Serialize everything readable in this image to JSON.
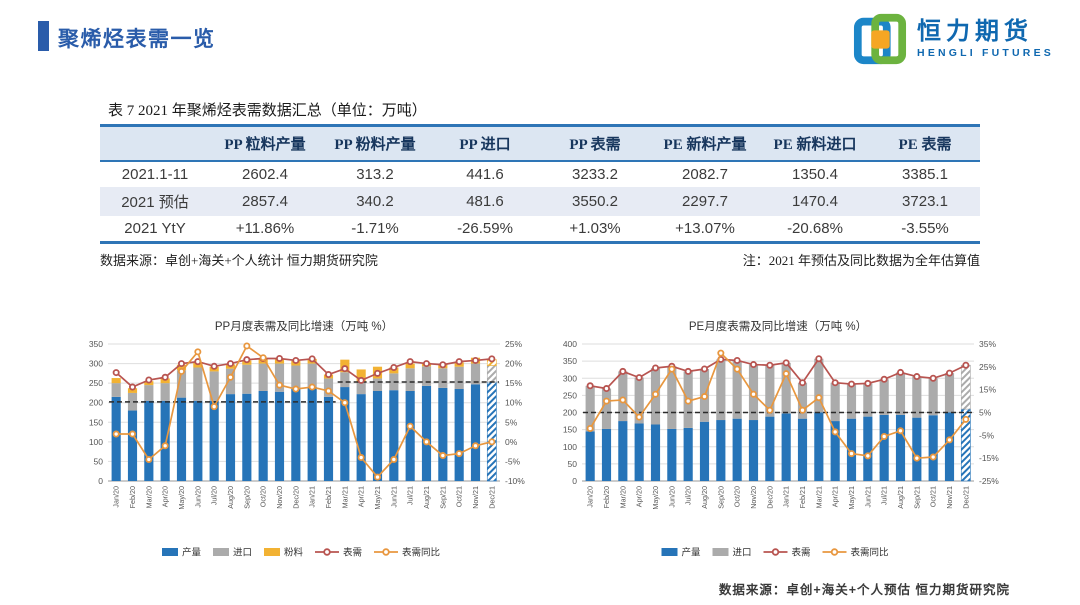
{
  "header": {
    "title": "聚烯烃表需一览",
    "logo": {
      "cn": "恒力期货",
      "en": "HENGLI FUTURES"
    }
  },
  "table": {
    "caption": "表 7 2021 年聚烯烃表需数据汇总（单位：万吨）",
    "columns": [
      "",
      "PP 粒料产量",
      "PP 粉料产量",
      "PP 进口",
      "PP 表需",
      "PE 新料产量",
      "PE 新料进口",
      "PE 表需"
    ],
    "rows": [
      {
        "label": "2021.1-11",
        "values": [
          "2602.4",
          "313.2",
          "441.6",
          "3233.2",
          "2082.7",
          "1350.4",
          "3385.1"
        ]
      },
      {
        "label": "2021 预估",
        "values": [
          "2857.4",
          "340.2",
          "481.6",
          "3550.2",
          "2297.7",
          "1470.4",
          "3723.1"
        ]
      },
      {
        "label": "2021 YtY",
        "values": [
          "+11.86%",
          "-1.71%",
          "-26.59%",
          "+1.03%",
          "+13.07%",
          "-20.68%",
          "-3.55%"
        ]
      }
    ],
    "source_note": "数据来源：卓创+海关+个人统计  恒力期货研究院",
    "estimate_note": "注：2021 年预估及同比数据为全年估算值"
  },
  "chart_data": [
    {
      "id": "pp",
      "type": "bar",
      "title": "PP月度表需及同比增速（万吨 %）",
      "categories": [
        "Jan/20",
        "Feb/20",
        "Mar/20",
        "Apr/20",
        "May/20",
        "Jun/20",
        "Jul/20",
        "Aug/20",
        "Sep/20",
        "Oct/20",
        "Nov/20",
        "Dec/20",
        "Jan/21",
        "Feb/21",
        "Mar/21",
        "Apr/21",
        "May/21",
        "Jun/21",
        "Jul/21",
        "Aug/21",
        "Sep/21",
        "Oct/21",
        "Nov/21",
        "Dec/21"
      ],
      "left_axis": {
        "min": 0,
        "max": 350,
        "step": 50
      },
      "right_axis": {
        "min": -10,
        "max": 25,
        "step": 5,
        "suffix": "%"
      },
      "series": [
        {
          "name": "产量",
          "type": "bar",
          "color": "#2674B8",
          "values": [
            215,
            180,
            205,
            205,
            213,
            205,
            205,
            222,
            223,
            230,
            228,
            235,
            240,
            215,
            240,
            222,
            230,
            232,
            230,
            243,
            238,
            235,
            247,
            253
          ]
        },
        {
          "name": "进口",
          "type": "bar",
          "color": "#ABABAB",
          "values": [
            35,
            45,
            40,
            45,
            70,
            85,
            75,
            65,
            74,
            70,
            72,
            60,
            60,
            47,
            38,
            30,
            32,
            43,
            58,
            50,
            50,
            57,
            53,
            42
          ]
        },
        {
          "name": "粉料",
          "type": "bar",
          "color": "#F2B233",
          "values": [
            13,
            12,
            10,
            12,
            14,
            12,
            12,
            11,
            11,
            12,
            12,
            12,
            12,
            10,
            32,
            33,
            30,
            15,
            12,
            9,
            10,
            11,
            15,
            15
          ]
        },
        {
          "name": "表需",
          "type": "line",
          "axis": "left",
          "color": "#B85450",
          "values": [
            277,
            240,
            258,
            265,
            300,
            305,
            293,
            300,
            310,
            313,
            313,
            308,
            312,
            272,
            287,
            257,
            275,
            290,
            305,
            300,
            297,
            305,
            308,
            312
          ]
        },
        {
          "name": "表需同比",
          "type": "line",
          "axis": "right",
          "color": "#E8973F",
          "values": [
            2,
            2,
            -4.5,
            -1,
            18,
            23,
            9,
            16.5,
            24.5,
            21.5,
            14.5,
            13.5,
            14,
            13,
            10,
            -4,
            -9,
            -4.5,
            4,
            0,
            -3.5,
            -3,
            -1,
            0
          ]
        }
      ],
      "dashed_lines": [
        {
          "start": 0,
          "end": 13,
          "value": 202
        },
        {
          "start": 14,
          "end": 23,
          "value": 253
        }
      ],
      "forecast_last_bar": true
    },
    {
      "id": "pe",
      "type": "bar",
      "title": "PE月度表需及同比增速（万吨 %）",
      "categories": [
        "Jan/20",
        "Feb/20",
        "Mar/20",
        "Apr/20",
        "May/20",
        "Jun/20",
        "Jul/20",
        "Aug/20",
        "Sep/20",
        "Oct/20",
        "Nov/20",
        "Dec/20",
        "Jan/21",
        "Feb/21",
        "Mar/21",
        "Apr/21",
        "May/21",
        "Jun/21",
        "Jul/21",
        "Aug/21",
        "Sep/21",
        "Oct/21",
        "Nov/21",
        "Dec/21"
      ],
      "left_axis": {
        "min": 0,
        "max": 400,
        "step": 50
      },
      "right_axis": {
        "min": -25,
        "max": 35,
        "step": 10,
        "suffix": "%"
      },
      "series": [
        {
          "name": "产量",
          "type": "bar",
          "color": "#2674B8",
          "values": [
            145,
            152,
            175,
            168,
            165,
            152,
            155,
            173,
            178,
            182,
            178,
            188,
            197,
            182,
            200,
            175,
            182,
            188,
            193,
            193,
            185,
            192,
            200,
            210
          ]
        },
        {
          "name": "进口",
          "type": "bar",
          "color": "#ABABAB",
          "values": [
            133,
            118,
            145,
            134,
            165,
            183,
            165,
            154,
            177,
            170,
            162,
            150,
            148,
            105,
            157,
            112,
            101,
            97,
            104,
            124,
            120,
            108,
            115,
            128
          ]
        },
        {
          "name": "表需",
          "type": "line",
          "axis": "left",
          "color": "#B85450",
          "values": [
            278,
            270,
            320,
            302,
            330,
            335,
            320,
            327,
            355,
            352,
            340,
            338,
            345,
            287,
            357,
            287,
            283,
            285,
            297,
            317,
            305,
            300,
            315,
            338
          ]
        },
        {
          "name": "表需同比",
          "type": "line",
          "axis": "right",
          "color": "#E8973F",
          "values": [
            -2,
            10,
            10.5,
            3,
            13,
            24,
            10,
            12,
            31,
            24,
            13,
            6,
            22,
            6,
            11.5,
            -3.5,
            -13,
            -14,
            -5.5,
            -3,
            -15,
            -14.5,
            -7,
            2
          ]
        }
      ],
      "dashed_lines": [
        {
          "start": 0,
          "end": 23,
          "value": 200
        }
      ],
      "forecast_last_bar": true
    }
  ],
  "footer": {
    "source": "数据来源：卓创+海关+个人预估  恒力期货研究院"
  },
  "colors": {
    "accent_blue": "#2A5CAA",
    "table_border": "#2E75B6",
    "table_header_bg": "#DCE6F2",
    "bar_blue": "#2674B8",
    "bar_gray": "#ABABAB",
    "bar_yellow": "#F2B233",
    "line_red": "#B85450",
    "line_orange": "#E8973F",
    "dashed_black": "#2b2b2b",
    "logo_blue": "#1C86C8",
    "logo_green": "#6CB33F",
    "logo_orange": "#F5A623"
  }
}
